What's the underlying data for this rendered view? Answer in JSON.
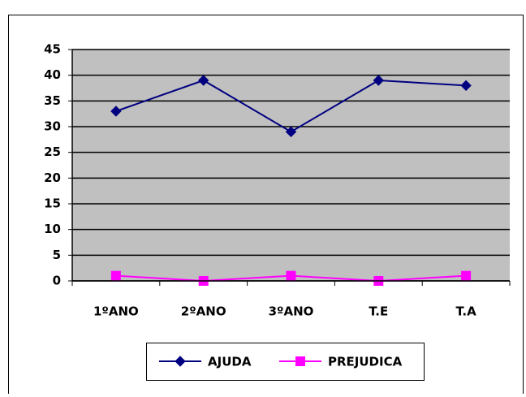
{
  "chart_data": {
    "type": "line",
    "categories": [
      "1ºANO",
      "2ºANO",
      "3ºANO",
      "T.E",
      "T.A"
    ],
    "series": [
      {
        "name": "AJUDA",
        "color": "#000080",
        "marker": "diamond",
        "values": [
          33,
          39,
          29,
          39,
          38
        ]
      },
      {
        "name": "PREJUDICA",
        "color": "#ff00ff",
        "marker": "square",
        "values": [
          1,
          0,
          1,
          0,
          1
        ]
      }
    ],
    "ylim": [
      0,
      45
    ],
    "yticks": [
      0,
      5,
      10,
      15,
      20,
      25,
      30,
      35,
      40,
      45
    ],
    "grid": true,
    "legend": "bottom"
  }
}
